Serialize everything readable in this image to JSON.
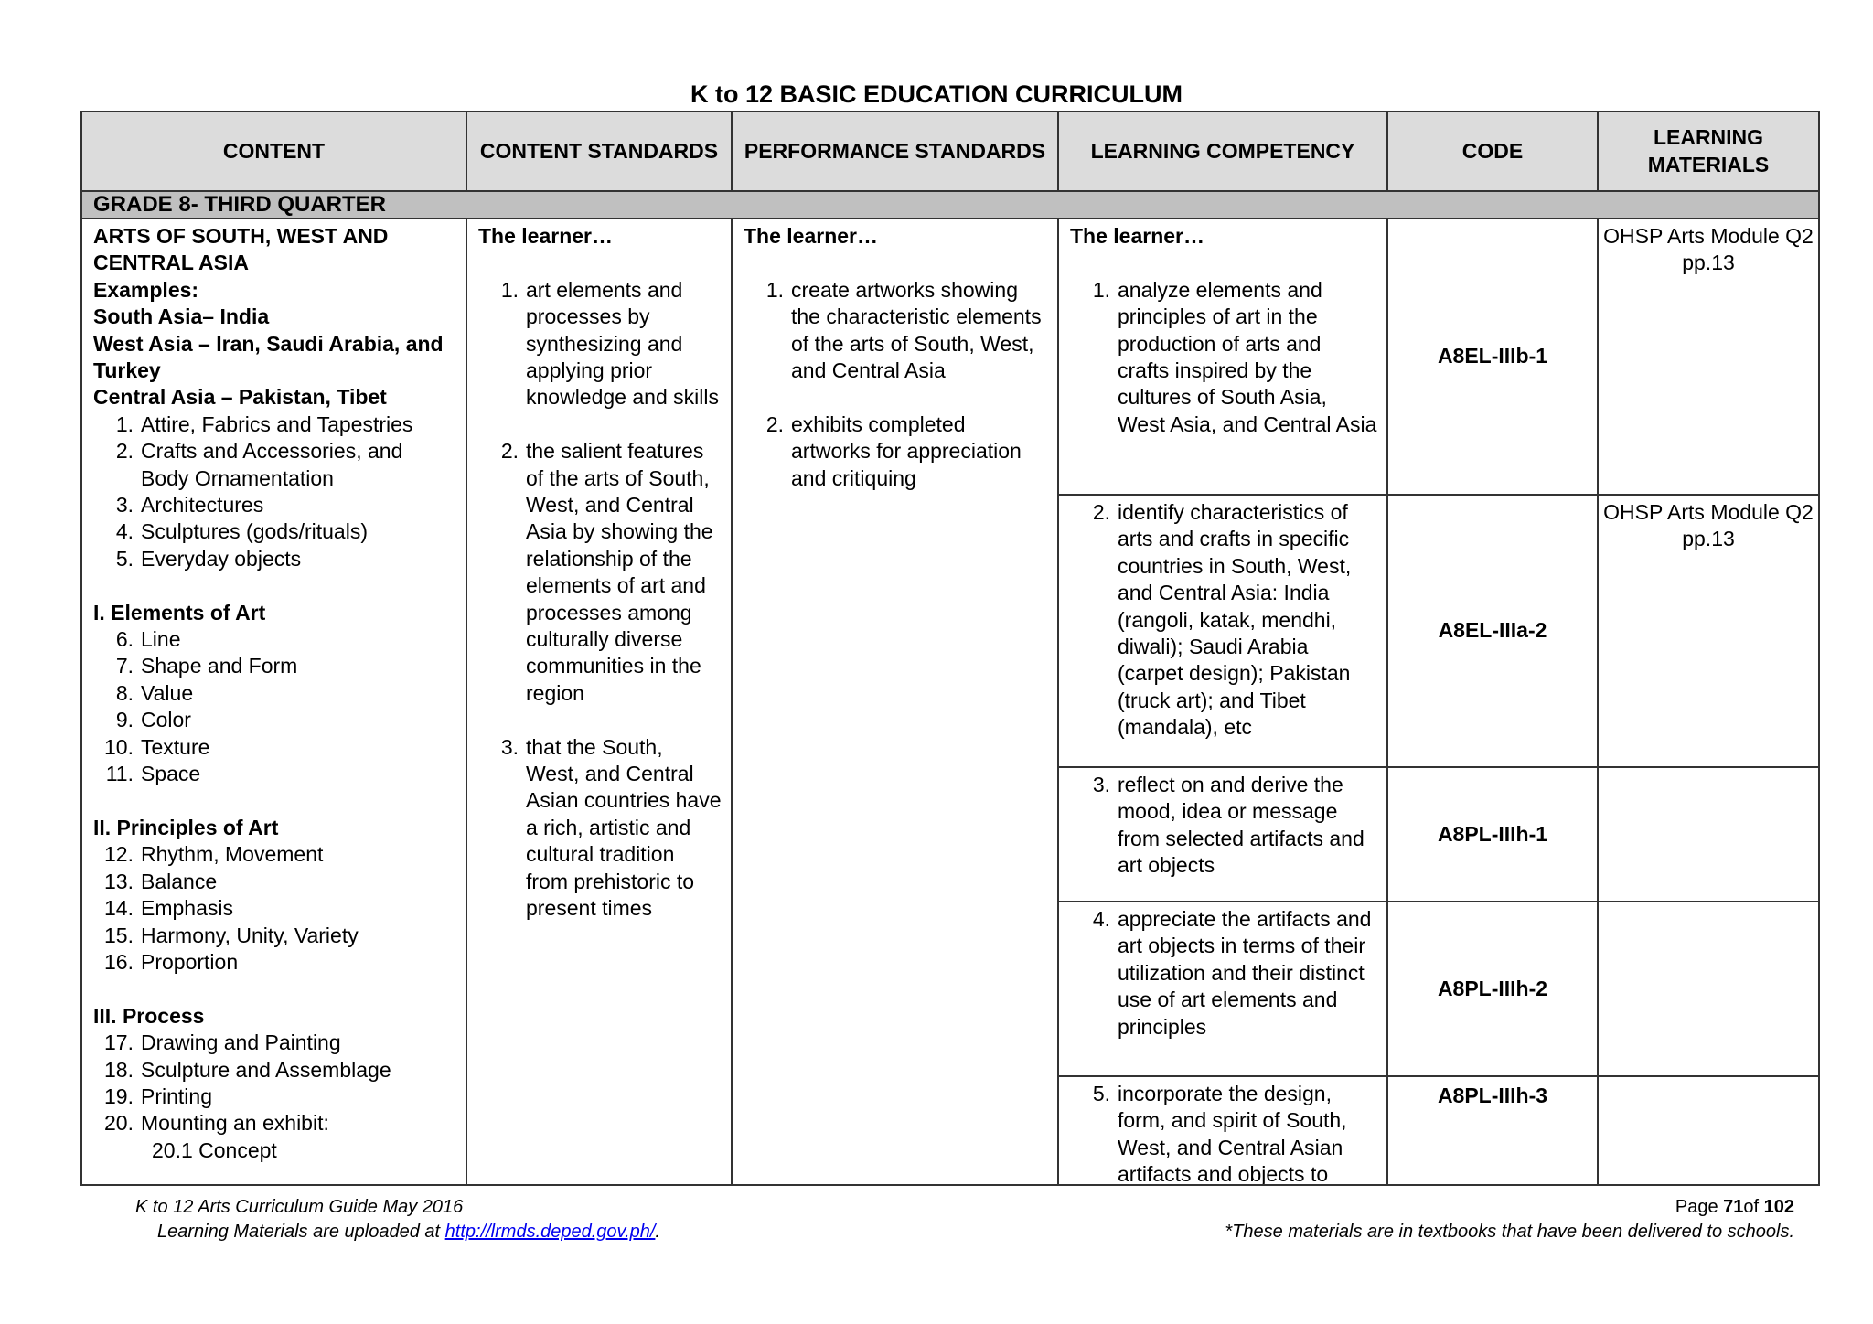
{
  "title": "K to 12 BASIC EDUCATION CURRICULUM",
  "headers": [
    "CONTENT",
    "CONTENT STANDARDS",
    "PERFORMANCE STANDARDS",
    "LEARNING COMPETENCY",
    "CODE",
    "LEARNING MATERIALS"
  ],
  "grade_row": "GRADE 8- THIRD  QUARTER",
  "content": [
    {
      "t": "ARTS OF SOUTH, WEST AND CENTRAL ASIA",
      "b": true
    },
    {
      "t": "Examples:",
      "b": true
    },
    {
      "t": "South Asia– India",
      "b": true
    },
    {
      "t": "West Asia – Iran, Saudi Arabia, and Turkey",
      "b": true
    },
    {
      "t": "Central Asia – Pakistan, Tibet",
      "b": true
    },
    {
      "n": "1.",
      "t": "Attire, Fabrics and Tapestries"
    },
    {
      "n": "2.",
      "t": "Crafts and Accessories, and Body Ornamentation"
    },
    {
      "n": "3.",
      "t": "Architectures"
    },
    {
      "n": "4.",
      "t": "Sculptures (gods/rituals)"
    },
    {
      "n": "5.",
      "t": "Everyday objects"
    },
    {
      "gap": true
    },
    {
      "t": "I.  Elements of Art",
      "b": true
    },
    {
      "n": "6.",
      "t": "Line"
    },
    {
      "n": "7.",
      "t": "Shape and Form"
    },
    {
      "n": "8.",
      "t": "Value"
    },
    {
      "n": "9.",
      "t": "Color"
    },
    {
      "n": "10.",
      "t": "Texture"
    },
    {
      "n": "11.",
      "t": "Space"
    },
    {
      "gap": true
    },
    {
      "t": "II. Principles of Art",
      "b": true
    },
    {
      "n": "12.",
      "t": "Rhythm, Movement"
    },
    {
      "n": "13.",
      "t": "Balance"
    },
    {
      "n": "14.",
      "t": "Emphasis"
    },
    {
      "n": "15.",
      "t": "Harmony, Unity, Variety"
    },
    {
      "n": "16.",
      "t": "Proportion"
    },
    {
      "gap": true
    },
    {
      "t": "III.  Process",
      "b": true
    },
    {
      "n": "17.",
      "t": "Drawing and Painting"
    },
    {
      "n": "18.",
      "t": "Sculpture and Assemblage"
    },
    {
      "n": "19.",
      "t": "Printing"
    },
    {
      "n": "20.",
      "t": "Mounting an exhibit:"
    },
    {
      "sub": true,
      "t": "20.1   Concept"
    }
  ],
  "content_standards": [
    {
      "t": "The learner…",
      "b": true
    },
    {
      "gap": true
    },
    {
      "n": "1.",
      "t": "art elements and processes by synthesizing and applying prior knowledge and skills"
    },
    {
      "gap": true
    },
    {
      "n": "2.",
      "t": "the salient features of the arts of South, West, and Central Asia by showing the relationship of the elements of art and processes among culturally diverse communities in the region"
    },
    {
      "gap": true
    },
    {
      "n": "3.",
      "t": "that the South, West, and Central Asian countries have a rich, artistic and cultural tradition from prehistoric to present times"
    }
  ],
  "performance_standards": [
    {
      "t": "The learner…",
      "b": true
    },
    {
      "gap": true
    },
    {
      "n": "1.",
      "t": "create artworks showing the characteristic elements of the arts of South, West, and Central Asia"
    },
    {
      "gap": true
    },
    {
      "n": "2.",
      "t": "exhibits completed artworks for appreciation and critiquing"
    }
  ],
  "competency_intro": "The learner…",
  "competencies": [
    {
      "n": "1.",
      "t": "analyze elements and principles of art in the production of arts and crafts inspired by the cultures of South Asia, West Asia, and Central Asia",
      "code": "A8EL-IIIb-1",
      "materials": "OHSP Arts Module Q2 pp.13"
    },
    {
      "n": "2.",
      "t": "identify characteristics of arts and crafts in specific countries in South, West, and Central  Asia: India (rangoli, katak, mendhi, diwali); Saudi Arabia (carpet design); Pakistan (truck art); and Tibet (mandala), etc",
      "code": "A8EL-IIIa-2",
      "materials": "OHSP Arts Module Q2 pp.13"
    },
    {
      "n": "3.",
      "t": "reflect on and derive the mood, idea or message from selected artifacts and art objects",
      "code": "A8PL-IIIh-1",
      "materials": ""
    },
    {
      "n": "4.",
      "t": "appreciate the artifacts and art objects in terms of their utilization and their distinct use of art elements and principles",
      "code": "A8PL-IIIh-2",
      "materials": ""
    },
    {
      "n": "5.",
      "t": "incorporate the design, form, and spirit of South, West, and Central Asian artifacts and objects to",
      "code": "A8PL-IIIh-3",
      "materials": ""
    }
  ],
  "footer": {
    "guide": "K to 12 Arts Curriculum Guide May 2016",
    "uploaded_prefix": "Learning Materials are uploaded at ",
    "link": "http://lrmds.deped.gov.ph/",
    "uploaded_suffix": ".",
    "page_prefix": "Page ",
    "page_num": "71",
    "page_of": "of ",
    "page_total": "102",
    "note": "*These materials are in textbooks that have been delivered to schools."
  }
}
